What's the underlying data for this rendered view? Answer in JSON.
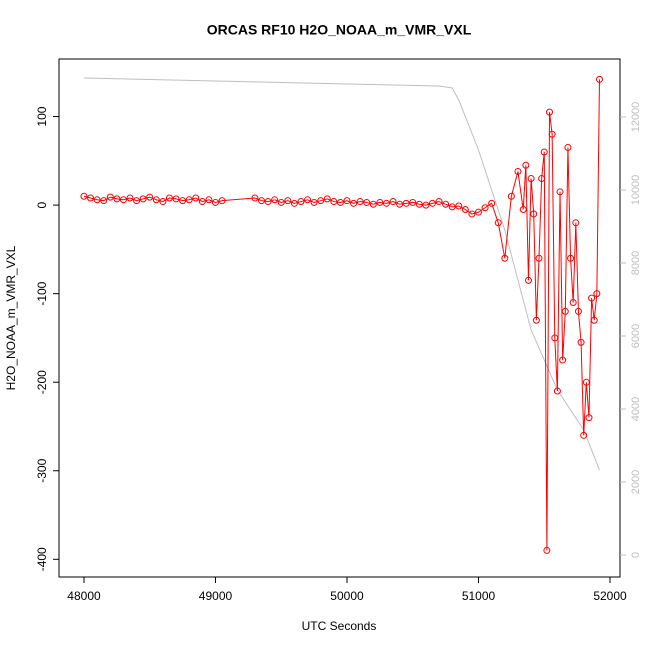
{
  "chart_data": {
    "type": "line",
    "title": "ORCAS RF10 H2O_NOAA_m_VMR_VXL",
    "xlabel": "UTC Seconds",
    "ylabel": "H2O_NOAA_m_VMR_VXL",
    "xlim": [
      47810,
      52076
    ],
    "ylim": [
      -420,
      165
    ],
    "y2lim": [
      -603,
      13589
    ],
    "xticks": [
      48000,
      49000,
      50000,
      51000,
      52000
    ],
    "yticks": [
      -400,
      -300,
      -200,
      -100,
      0,
      100
    ],
    "y2ticks": [
      0,
      2000,
      4000,
      6000,
      8000,
      10000,
      12000
    ],
    "series": [
      {
        "color": "#ff0000",
        "markers": true,
        "x": [
          48000,
          48050,
          48100,
          48150,
          48200,
          48250,
          48300,
          48350,
          48400,
          48450,
          48500,
          48550,
          48600,
          48650,
          48700,
          48750,
          48800,
          48850,
          48900,
          48950,
          49000,
          49050,
          49300,
          49350,
          49400,
          49450,
          49500,
          49550,
          49600,
          49650,
          49700,
          49750,
          49800,
          49850,
          49900,
          49950,
          50000,
          50050,
          50100,
          50150,
          50200,
          50250,
          50300,
          50350,
          50400,
          50450,
          50500,
          50550,
          50600,
          50650,
          50700,
          50750,
          50800,
          50850,
          50900,
          50950,
          51000,
          51050,
          51100,
          51150,
          51200,
          51250,
          51300,
          51340,
          51360,
          51380,
          51400,
          51420,
          51440,
          51460,
          51480,
          51500,
          51520,
          51540,
          51560,
          51580,
          51600,
          51620,
          51640,
          51660,
          51680,
          51700,
          51720,
          51740,
          51760,
          51780,
          51800,
          51820,
          51840,
          51860,
          51880,
          51900,
          51920
        ],
        "values": [
          10,
          8,
          6,
          5,
          9,
          7,
          6,
          8,
          5,
          7,
          9,
          6,
          4,
          8,
          7,
          5,
          6,
          8,
          4,
          6,
          3,
          5,
          8,
          5,
          4,
          6,
          3,
          5,
          2,
          4,
          6,
          3,
          5,
          7,
          4,
          3,
          5,
          2,
          4,
          3,
          1,
          3,
          2,
          4,
          1,
          2,
          3,
          1,
          0,
          2,
          4,
          1,
          -2,
          -1,
          -5,
          -10,
          -8,
          -3,
          2,
          -20,
          -60,
          10,
          38,
          -5,
          45,
          -85,
          30,
          -10,
          -130,
          -60,
          30,
          60,
          -390,
          105,
          80,
          -150,
          -210,
          15,
          -175,
          -120,
          65,
          -60,
          -110,
          -20,
          -120,
          -155,
          -260,
          -200,
          -240,
          -105,
          -130,
          -100,
          142
        ]
      },
      {
        "color": "#bebebe",
        "markers": false,
        "axis": "y2",
        "x": [
          48000,
          50700,
          50800,
          50850,
          51000,
          51200,
          51400,
          51600,
          51800,
          51920
        ],
        "values": [
          13068,
          12849,
          12795,
          12466,
          11096,
          8904,
          6164,
          4520,
          3425,
          2329
        ]
      }
    ]
  }
}
